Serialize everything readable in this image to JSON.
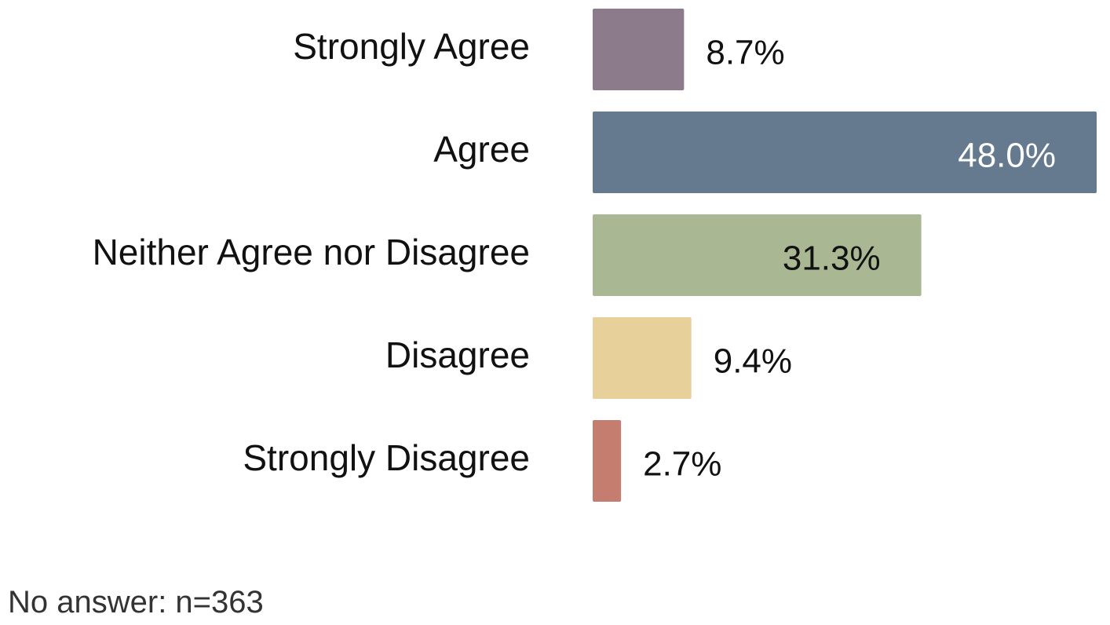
{
  "chart_data": {
    "type": "bar",
    "orientation": "horizontal",
    "categories": [
      "Strongly Agree",
      "Agree",
      "Neither Agree nor Disagree",
      "Disagree",
      "Strongly Disagree"
    ],
    "values": [
      8.7,
      48.0,
      31.3,
      9.4,
      2.7
    ],
    "value_labels": [
      "8.7%",
      "48.0%",
      "31.3%",
      "9.4%",
      "2.7%"
    ],
    "colors": [
      "#8b7b8b",
      "#667a8f",
      "#a9b893",
      "#e8d09b",
      "#c47d6e"
    ],
    "label_colors": [
      "#111111",
      "#ffffff",
      "#111111",
      "#111111",
      "#111111"
    ],
    "xlim": [
      0,
      48.0
    ],
    "unit": "%",
    "grid": false,
    "legend": "none"
  },
  "footnote": "No answer: n=363"
}
